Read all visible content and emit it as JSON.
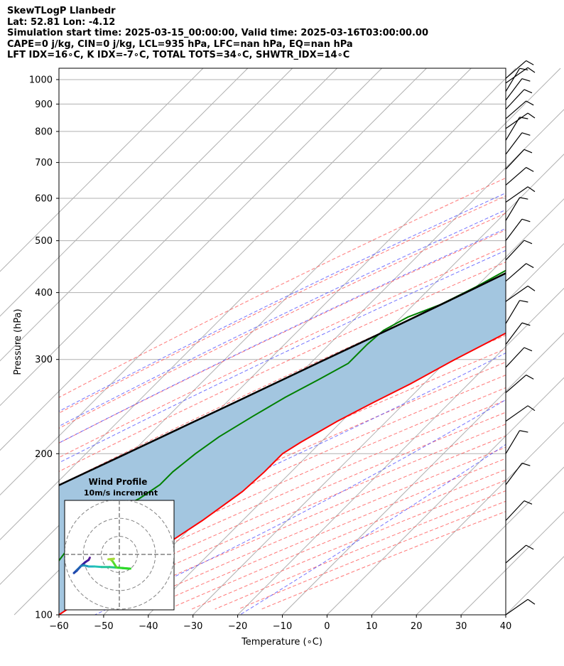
{
  "header": {
    "line1": "SkewTLogP Llanbedr",
    "line2": "Lat: 52.81   Lon: -4.12",
    "line3": "Simulation start time: 2025-03-15_00:00:00, Valid time: 2025-03-16T03:00:00.00",
    "line4": "CAPE=0 j/kg, CIN=0 j/kg, LCL=935 hPa, LFC=nan hPa, EQ=nan hPa",
    "line5": "LFT IDX=16∘C, K IDX=-7∘C, TOTAL TOTS=34∘C, SHWTR_IDX=14∘C"
  },
  "chart_data": {
    "type": "line",
    "xlabel": "Temperature (∘C)",
    "ylabel": "Pressure (hPa)",
    "xlim": [
      -60,
      40
    ],
    "ylim": [
      1050,
      100
    ],
    "y_scale": "log",
    "grid": true,
    "x_ticks": [
      "−60",
      "−50",
      "−40",
      "−30",
      "−20",
      "−10",
      "0",
      "10",
      "20",
      "30",
      "40"
    ],
    "x_tick_values": [
      -60,
      -50,
      -40,
      -30,
      -20,
      -10,
      0,
      10,
      20,
      30,
      40
    ],
    "y_ticks": [
      "100",
      "200",
      "300",
      "400",
      "500",
      "600",
      "700",
      "800",
      "900",
      "1000"
    ],
    "y_tick_values": [
      100,
      200,
      300,
      400,
      500,
      600,
      700,
      800,
      900,
      1000
    ],
    "series": [
      {
        "role": "temperature",
        "color": "#ff0000",
        "points": [
          [
            1000,
            2.0
          ],
          [
            1012,
            5.0
          ],
          [
            990,
            6.0
          ],
          [
            960,
            4.0
          ],
          [
            925,
            2.0
          ],
          [
            900,
            1.0
          ],
          [
            870,
            1.5
          ],
          [
            840,
            3.5
          ],
          [
            800,
            6.0
          ],
          [
            760,
            8.0
          ],
          [
            730,
            8.5
          ],
          [
            700,
            8.0
          ],
          [
            650,
            5.5
          ],
          [
            600,
            2.0
          ],
          [
            550,
            -1.5
          ],
          [
            500,
            -5.5
          ],
          [
            450,
            -9.5
          ],
          [
            400,
            -15.0
          ],
          [
            350,
            -21.0
          ],
          [
            300,
            -28.5
          ],
          [
            270,
            -33.0
          ],
          [
            250,
            -37.0
          ],
          [
            230,
            -41.0
          ],
          [
            210,
            -44.5
          ],
          [
            200,
            -46.0
          ],
          [
            185,
            -46.0
          ],
          [
            170,
            -46.5
          ],
          [
            150,
            -49.0
          ],
          [
            120,
            -55.0
          ],
          [
            110,
            -57.5
          ],
          [
            100,
            -60.0
          ]
        ]
      },
      {
        "role": "dewpoint",
        "color": "#008000",
        "points": [
          [
            1000,
            0.0
          ],
          [
            960,
            0.0
          ],
          [
            925,
            -1.5
          ],
          [
            900,
            -2.5
          ],
          [
            870,
            -4.0
          ],
          [
            840,
            -7.0
          ],
          [
            800,
            -14.0
          ],
          [
            760,
            -17.5
          ],
          [
            730,
            -19.5
          ],
          [
            700,
            -19.0
          ],
          [
            650,
            -21.0
          ],
          [
            600,
            -24.0
          ],
          [
            550,
            -28.0
          ],
          [
            500,
            -32.5
          ],
          [
            470,
            -34.0
          ],
          [
            440,
            -37.0
          ],
          [
            410,
            -40.0
          ],
          [
            380,
            -44.0
          ],
          [
            360,
            -48.5
          ],
          [
            340,
            -51.0
          ],
          [
            320,
            -51.5
          ],
          [
            295,
            -51.5
          ],
          [
            275,
            -54.5
          ],
          [
            255,
            -58.0
          ],
          [
            235,
            -61.0
          ],
          [
            215,
            -64.0
          ],
          [
            200,
            -65.5
          ],
          [
            185,
            -66.5
          ],
          [
            175,
            -66.5
          ],
          [
            165,
            -68.0
          ],
          [
            155,
            -71.0
          ],
          [
            145,
            -74.0
          ],
          [
            135,
            -73.0
          ],
          [
            125,
            -72.0
          ],
          [
            110,
            -70.5
          ],
          [
            100,
            -69.0
          ]
        ]
      },
      {
        "role": "parcel",
        "color": "#000000",
        "points": [
          [
            1000,
            2.0
          ],
          [
            970,
            1.0
          ],
          [
            935,
            -0.5
          ],
          [
            900,
            -2.0
          ],
          [
            850,
            -4.5
          ],
          [
            800,
            -7.0
          ],
          [
            750,
            -9.5
          ],
          [
            700,
            -12.5
          ],
          [
            650,
            -16.0
          ],
          [
            600,
            -19.5
          ],
          [
            550,
            -24.0
          ],
          [
            500,
            -29.0
          ],
          [
            450,
            -34.5
          ],
          [
            400,
            -41.0
          ],
          [
            350,
            -48.5
          ],
          [
            300,
            -57.5
          ],
          [
            250,
            -68.0
          ],
          [
            200,
            -81.0
          ],
          [
            150,
            -98.0
          ],
          [
            100,
            -122.0
          ]
        ]
      }
    ],
    "cape_cin_shading": "#a3c6e0",
    "reference_lines": {
      "dry_adiabats_color": "#ff5555",
      "moist_adiabats_color": "#4444ff",
      "mixing_ratio_color": "#aaaaaa"
    },
    "wind_barbs": {
      "color": "#000000",
      "pressures": [
        100,
        125,
        150,
        175,
        200,
        230,
        260,
        290,
        320,
        350,
        385,
        420,
        460,
        500,
        545,
        590,
        635,
        680,
        725,
        770,
        810,
        845,
        880,
        915,
        950,
        985,
        1005
      ]
    },
    "hodograph": {
      "title": "Wind Profile",
      "subtitle": "10m/s increment",
      "range": [
        -10,
        10
      ],
      "rings": [
        3.3,
        6.6,
        10
      ],
      "trace": [
        [
          -5.4,
          -0.6
        ],
        [
          -5.6,
          -1.0
        ],
        [
          -6.2,
          -1.4
        ],
        [
          -7.0,
          -2.1
        ],
        [
          -7.8,
          -3.0
        ],
        [
          -8.3,
          -3.4
        ],
        [
          -7.8,
          -2.9
        ],
        [
          -7.0,
          -2.1
        ],
        [
          -6.5,
          -2.0
        ],
        [
          -5.6,
          -2.2
        ],
        [
          -4.6,
          -2.2
        ],
        [
          -3.2,
          -2.3
        ],
        [
          -1.8,
          -2.3
        ],
        [
          -0.6,
          -2.4
        ],
        [
          0.6,
          -2.5
        ],
        [
          1.6,
          -2.6
        ],
        [
          2.0,
          -2.6
        ],
        [
          -0.5,
          -2.4
        ],
        [
          -1.2,
          -1.3
        ],
        [
          -1.5,
          -1.0
        ],
        [
          -1.0,
          -0.8
        ],
        [
          -2.0,
          -0.9
        ]
      ]
    }
  }
}
